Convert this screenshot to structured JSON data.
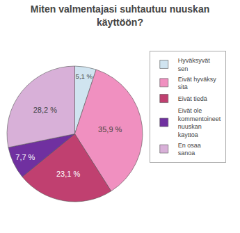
{
  "chart_data": {
    "type": "pie",
    "title": "Miten valmentajasi suhtautuu nuuskan\nkäyttöön?",
    "categories": [
      "Hyväksyvät\nsen",
      "Eivät hyväksy\nsitä",
      "Eivät tiedä",
      "Eivät ole\nkommentoineet\nnuuskan\nkäyttöä",
      "En osaa\nsanoa"
    ],
    "values": [
      5.1,
      35.9,
      23.1,
      7.7,
      28.2
    ],
    "value_labels": [
      "5,1 %",
      "35,9 %",
      "23,1 %",
      "7,7 %",
      "28,2 %"
    ],
    "colors": [
      "#d0e4f0",
      "#f090c0",
      "#c04070",
      "#7030a0",
      "#d8b0d8"
    ],
    "data_labels": true,
    "legend": "right"
  }
}
